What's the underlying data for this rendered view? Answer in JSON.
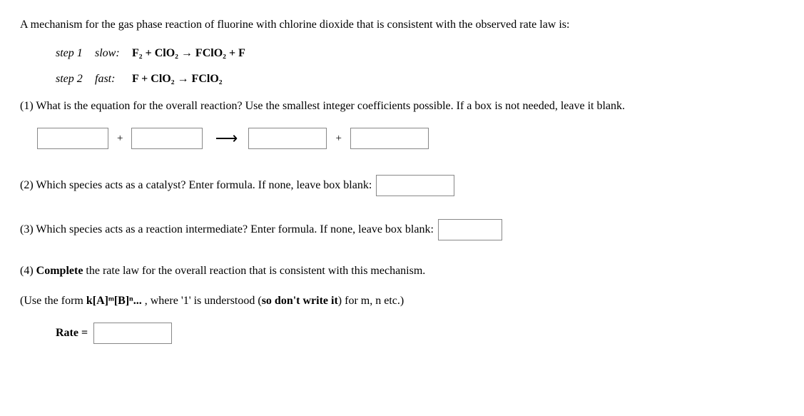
{
  "intro": "A mechanism for the gas phase reaction of fluorine with chlorine dioxide that is consistent with the observed rate law is:",
  "steps": {
    "s1_label": "step 1",
    "s1_speed": "slow:",
    "s1_eq": "F₂ + ClO₂ → FClO₂ + F",
    "s2_label": "step 2",
    "s2_speed": "fast:",
    "s2_eq": "F + ClO₂ → FClO₂"
  },
  "q1": "(1) What is the equation for the overall reaction? Use the smallest integer coefficients possible. If a box is not needed, leave it blank.",
  "plus": "+",
  "arrow": "⟶",
  "q2": "(2) Which species acts as a catalyst? Enter formula. If none, leave box blank:",
  "q3": "(3) Which species acts as a reaction intermediate? Enter formula. If none, leave box blank:",
  "q4_a": "(4) ",
  "q4_b": "Complete",
  "q4_c": " the rate law for the overall reaction that is consistent with this mechanism.",
  "q4_hint_a": "(Use the form ",
  "q4_hint_b": "k[A]ᵐ[B]ⁿ...",
  "q4_hint_c": " , where '1' is understood (",
  "q4_hint_d": "so don't write it",
  "q4_hint_e": ") for m, n etc.)",
  "rate_label": "Rate ="
}
